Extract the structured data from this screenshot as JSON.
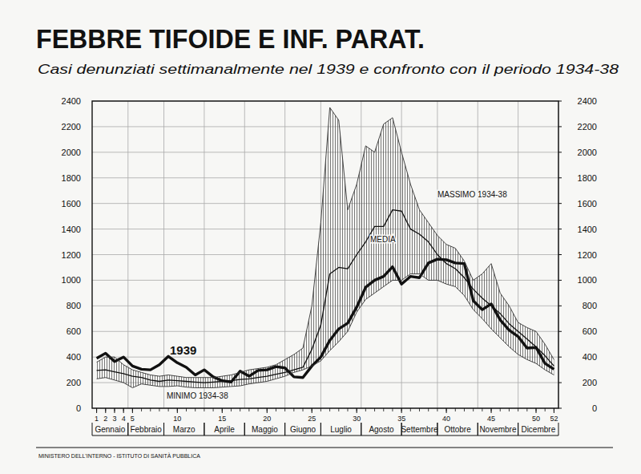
{
  "chart_data": {
    "type": "line",
    "title": "FEBBRE TIFOIDE E INF. PARAT.",
    "subtitle": "Casi denunziati settimanalmente nel 1939 e confronto con il periodo 1934-38",
    "source": "MINISTERO DELL'INTERNO - ISTITUTO DI SANITÀ PUBBLICA",
    "x": [
      1,
      2,
      3,
      4,
      5,
      6,
      7,
      8,
      9,
      10,
      11,
      12,
      13,
      14,
      15,
      16,
      17,
      18,
      19,
      20,
      21,
      22,
      23,
      24,
      25,
      26,
      27,
      28,
      29,
      30,
      31,
      32,
      33,
      34,
      35,
      36,
      37,
      38,
      39,
      40,
      41,
      42,
      43,
      44,
      45,
      46,
      47,
      48,
      49,
      50,
      51,
      52
    ],
    "xlim": [
      0.5,
      52.5
    ],
    "xticks": [
      1,
      2,
      3,
      4,
      5,
      10,
      15,
      20,
      25,
      30,
      35,
      40,
      45,
      50,
      52
    ],
    "x_groups": [
      {
        "label": "Gennaio",
        "from": 0.5,
        "to": 4.5
      },
      {
        "label": "Febbraio",
        "from": 4.5,
        "to": 8.5
      },
      {
        "label": "Marzo",
        "from": 8.5,
        "to": 13
      },
      {
        "label": "Aprile",
        "from": 13,
        "to": 17.5
      },
      {
        "label": "Maggio",
        "from": 17.5,
        "to": 22
      },
      {
        "label": "Giugno",
        "from": 22,
        "to": 26
      },
      {
        "label": "Luglio",
        "from": 26,
        "to": 30.5
      },
      {
        "label": "Agosto",
        "from": 30.5,
        "to": 35
      },
      {
        "label": "Settembre",
        "from": 35,
        "to": 39
      },
      {
        "label": "Ottobre",
        "from": 39,
        "to": 43.5
      },
      {
        "label": "Novembre",
        "from": 43.5,
        "to": 48
      },
      {
        "label": "Dicembre",
        "from": 48,
        "to": 52.5
      }
    ],
    "ylim": [
      0,
      2400
    ],
    "yticks": [
      0,
      200,
      400,
      600,
      800,
      1000,
      1200,
      1400,
      1600,
      1800,
      2000,
      2200,
      2400
    ],
    "y2lim": [
      0,
      2400
    ],
    "y2ticks": [
      0,
      200,
      400,
      600,
      800,
      1000,
      1200,
      1400,
      1600,
      1800,
      2000,
      2200,
      2400
    ],
    "grid": true,
    "series": [
      {
        "name": "1939",
        "type": "line",
        "line_style": "thick",
        "color": "#111111",
        "values": [
          390,
          430,
          365,
          400,
          330,
          305,
          300,
          340,
          405,
          355,
          320,
          260,
          300,
          245,
          215,
          205,
          290,
          250,
          295,
          300,
          325,
          315,
          245,
          240,
          330,
          400,
          530,
          620,
          665,
          790,
          945,
          1000,
          1030,
          1105,
          970,
          1030,
          1020,
          1135,
          1165,
          1160,
          1135,
          1130,
          840,
          770,
          815,
          690,
          610,
          560,
          470,
          475,
          350,
          305
        ]
      },
      {
        "name": "MEDIA",
        "type": "line",
        "line_style": "thin",
        "color": "#111111",
        "values": [
          295,
          300,
          285,
          270,
          250,
          240,
          220,
          210,
          220,
          215,
          210,
          205,
          200,
          205,
          210,
          215,
          225,
          230,
          240,
          250,
          265,
          280,
          300,
          320,
          460,
          650,
          1050,
          1100,
          1090,
          1200,
          1300,
          1420,
          1420,
          1550,
          1540,
          1400,
          1360,
          1300,
          1200,
          1130,
          1090,
          1020,
          930,
          860,
          800,
          740,
          660,
          600,
          540,
          480,
          410,
          330
        ]
      },
      {
        "name": "MASSIMO 1934-38",
        "type": "range",
        "line_style": "solid",
        "color": "#333333",
        "values": [
          360,
          400,
          400,
          340,
          300,
          280,
          260,
          250,
          260,
          250,
          240,
          240,
          240,
          240,
          250,
          260,
          280,
          300,
          310,
          320,
          340,
          380,
          420,
          470,
          800,
          1450,
          2350,
          2250,
          1550,
          1750,
          2050,
          2000,
          2220,
          2270,
          2000,
          1750,
          1550,
          1450,
          1350,
          1280,
          1250,
          1150,
          1000,
          1050,
          1130,
          900,
          800,
          670,
          630,
          600,
          500,
          380
        ]
      },
      {
        "name": "MINIMO 1934-38",
        "type": "range",
        "line_style": "solid",
        "color": "#333333",
        "values": [
          230,
          240,
          220,
          200,
          160,
          190,
          180,
          170,
          170,
          175,
          165,
          160,
          160,
          160,
          165,
          170,
          175,
          190,
          200,
          210,
          230,
          250,
          280,
          300,
          330,
          370,
          450,
          520,
          600,
          750,
          850,
          900,
          950,
          1000,
          1000,
          1050,
          1050,
          1000,
          1000,
          970,
          950,
          880,
          770,
          700,
          620,
          550,
          480,
          420,
          380,
          350,
          300,
          260
        ]
      }
    ]
  }
}
